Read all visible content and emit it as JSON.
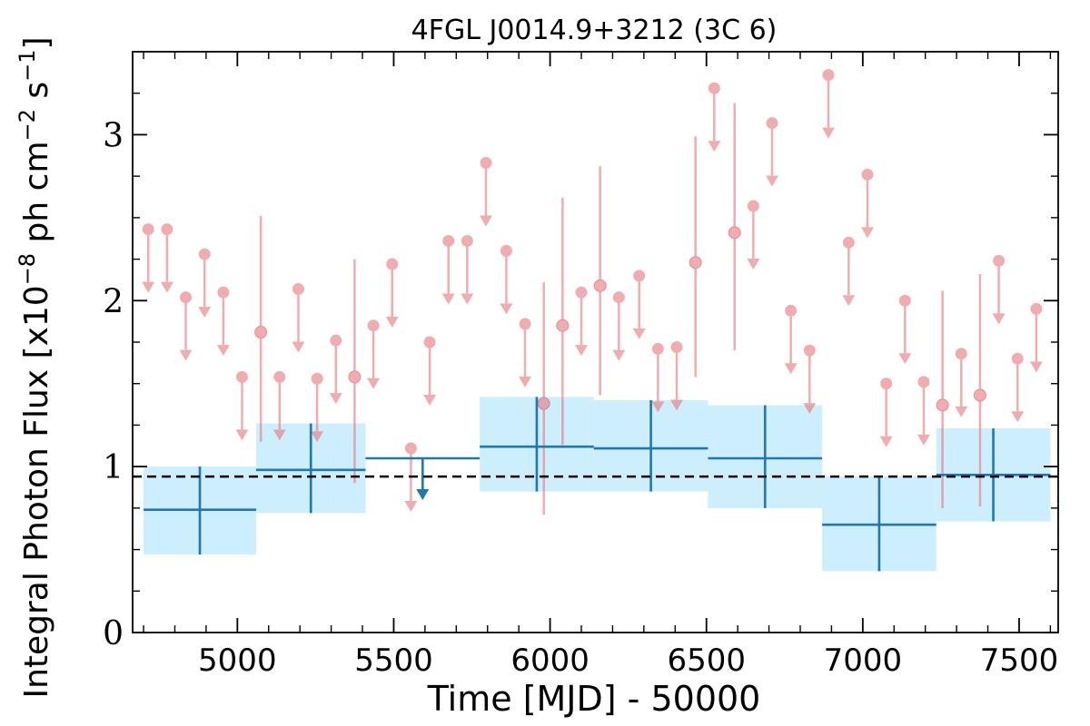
{
  "chart_data": {
    "type": "scatter",
    "title": "4FGL J0014.9+3212 (3C 6)",
    "xlabel": "Time [MJD] - 50000",
    "ylabel": "Integral Photon Flux [x10",
    "ylabel_exp": "−8",
    "ylabel_mid": " ph cm",
    "ylabel_exp2": "−2",
    "ylabel_tail": " s",
    "ylabel_exp3": "−1",
    "ylabel_end": "]",
    "xlim": [
      4665,
      7625
    ],
    "ylim": [
      0,
      3.5
    ],
    "xticks": [
      5000,
      5500,
      6000,
      6500,
      7000,
      7500
    ],
    "yticks": [
      0,
      1,
      2,
      3
    ],
    "grid": false,
    "colors": {
      "monthly": "#e87a7f",
      "yearly": "#1f77b4",
      "band": "#cdeefc",
      "mean_line": "#000000"
    },
    "mean_flux": 0.94,
    "yearly_bins": [
      {
        "x0": 4700,
        "x1": 5060,
        "flux": 0.74,
        "lo": 0.47,
        "hi": 1.0
      },
      {
        "x0": 5060,
        "x1": 5410,
        "flux": 0.98,
        "lo": 0.72,
        "hi": 1.26
      },
      {
        "x0": 5410,
        "x1": 5775,
        "flux": 1.05,
        "upper_limit": true
      },
      {
        "x0": 5775,
        "x1": 6140,
        "flux": 1.12,
        "lo": 0.85,
        "hi": 1.42
      },
      {
        "x0": 6140,
        "x1": 6505,
        "flux": 1.11,
        "lo": 0.85,
        "hi": 1.4
      },
      {
        "x0": 6505,
        "x1": 6870,
        "flux": 1.05,
        "lo": 0.75,
        "hi": 1.37
      },
      {
        "x0": 6870,
        "x1": 7235,
        "flux": 0.65,
        "lo": 0.37,
        "hi": 0.94
      },
      {
        "x0": 7235,
        "x1": 7600,
        "flux": 0.95,
        "lo": 0.67,
        "hi": 1.23
      }
    ],
    "monthly_points": [
      {
        "x": 4715,
        "y": 2.43,
        "ul": true
      },
      {
        "x": 4775,
        "y": 2.43,
        "ul": true
      },
      {
        "x": 4835,
        "y": 2.02,
        "ul": true
      },
      {
        "x": 4895,
        "y": 2.28,
        "ul": true
      },
      {
        "x": 4955,
        "y": 2.05,
        "ul": true
      },
      {
        "x": 5015,
        "y": 1.54,
        "ul": true
      },
      {
        "x": 5075,
        "y": 1.81,
        "lo": 1.15,
        "hi": 2.51
      },
      {
        "x": 5135,
        "y": 1.54,
        "ul": true
      },
      {
        "x": 5195,
        "y": 2.07,
        "ul": true
      },
      {
        "x": 5255,
        "y": 1.53,
        "ul": true
      },
      {
        "x": 5315,
        "y": 1.76,
        "ul": true
      },
      {
        "x": 5375,
        "y": 1.54,
        "lo": 0.9,
        "hi": 2.25
      },
      {
        "x": 5435,
        "y": 1.85,
        "ul": true
      },
      {
        "x": 5495,
        "y": 2.22,
        "ul": true
      },
      {
        "x": 5555,
        "y": 1.11,
        "ul": true
      },
      {
        "x": 5615,
        "y": 1.75,
        "ul": true
      },
      {
        "x": 5675,
        "y": 2.36,
        "ul": true
      },
      {
        "x": 5735,
        "y": 2.36,
        "ul": true
      },
      {
        "x": 5795,
        "y": 2.83,
        "ul": true
      },
      {
        "x": 5860,
        "y": 2.3,
        "ul": true
      },
      {
        "x": 5920,
        "y": 1.86,
        "ul": true
      },
      {
        "x": 5980,
        "y": 1.38,
        "lo": 0.71,
        "hi": 2.11
      },
      {
        "x": 6040,
        "y": 1.85,
        "lo": 1.13,
        "hi": 2.62
      },
      {
        "x": 6100,
        "y": 2.05,
        "ul": true
      },
      {
        "x": 6160,
        "y": 2.09,
        "lo": 1.43,
        "hi": 2.81
      },
      {
        "x": 6220,
        "y": 2.02,
        "ul": true
      },
      {
        "x": 6285,
        "y": 2.15,
        "ul": true
      },
      {
        "x": 6345,
        "y": 1.71,
        "ul": true
      },
      {
        "x": 6405,
        "y": 1.72,
        "ul": true
      },
      {
        "x": 6465,
        "y": 2.23,
        "lo": 1.54,
        "hi": 2.99
      },
      {
        "x": 6525,
        "y": 3.28,
        "ul": true
      },
      {
        "x": 6590,
        "y": 2.41,
        "lo": 1.7,
        "hi": 3.19
      },
      {
        "x": 6650,
        "y": 2.57,
        "ul": true
      },
      {
        "x": 6710,
        "y": 3.07,
        "ul": true
      },
      {
        "x": 6770,
        "y": 1.94,
        "ul": true
      },
      {
        "x": 6830,
        "y": 1.7,
        "ul": true
      },
      {
        "x": 6890,
        "y": 3.36,
        "ul": true
      },
      {
        "x": 6955,
        "y": 2.35,
        "ul": true
      },
      {
        "x": 7015,
        "y": 2.76,
        "ul": true
      },
      {
        "x": 7075,
        "y": 1.5,
        "ul": true
      },
      {
        "x": 7135,
        "y": 2.0,
        "ul": true
      },
      {
        "x": 7195,
        "y": 1.51,
        "ul": true
      },
      {
        "x": 7255,
        "y": 1.37,
        "lo": 0.75,
        "hi": 2.06
      },
      {
        "x": 7315,
        "y": 1.68,
        "ul": true
      },
      {
        "x": 7375,
        "y": 1.43,
        "lo": 0.76,
        "hi": 2.16
      },
      {
        "x": 7435,
        "y": 2.24,
        "ul": true
      },
      {
        "x": 7495,
        "y": 1.65,
        "ul": true
      },
      {
        "x": 7555,
        "y": 1.95,
        "ul": true
      }
    ]
  }
}
